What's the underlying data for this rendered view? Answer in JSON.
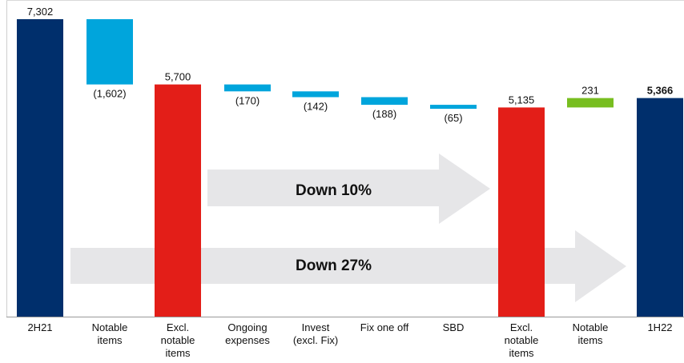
{
  "chart_data": {
    "type": "bar",
    "subtype": "waterfall",
    "categories": [
      "2H21",
      "Notable\nitems",
      "Excl.\nnotable\nitems",
      "Ongoing\nexpenses",
      "Invest\n(excl. Fix)",
      "Fix one off",
      "SBD",
      "Excl.\nnotable\nitems",
      "Notable\nitems",
      "1H22"
    ],
    "values": [
      7302,
      -1602,
      5700,
      -170,
      -142,
      -188,
      -65,
      5135,
      231,
      5366
    ],
    "value_labels": [
      "7,302",
      "(1,602)",
      "5,700",
      "(170)",
      "(142)",
      "(188)",
      "(65)",
      "5,135",
      "231",
      "5,366"
    ],
    "bar_kind": [
      "total",
      "delta",
      "subtotal",
      "delta",
      "delta",
      "delta",
      "delta",
      "subtotal",
      "delta",
      "total"
    ],
    "bold_labels": [
      false,
      false,
      false,
      false,
      false,
      false,
      false,
      false,
      false,
      true
    ],
    "ylim": [
      0,
      7302
    ],
    "grid": false,
    "colors": {
      "total": "#002f6c",
      "subtotal": "#e31e18",
      "negative": "#00a5dc",
      "positive": "#78be20",
      "arrow": "#e6e6e8",
      "axis": "#999999",
      "text": "#111111"
    },
    "annotations": [
      {
        "text": "Down 10%",
        "from_category": 2,
        "to_category": 7
      },
      {
        "text": "Down 27%",
        "from_category": 0,
        "to_category": 9
      }
    ]
  }
}
